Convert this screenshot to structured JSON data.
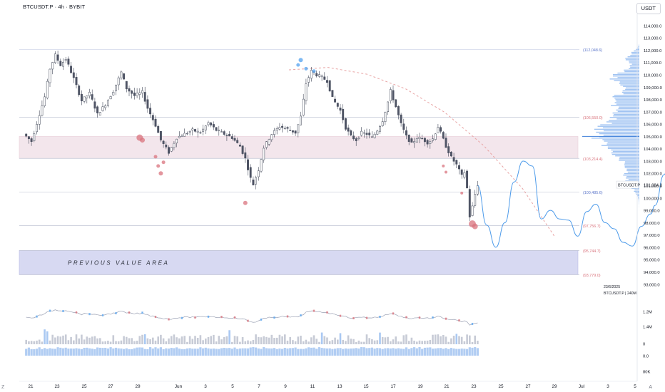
{
  "header": {
    "symbol": "BTCUSDT.P",
    "interval": "4h",
    "exchange": "BYBIT"
  },
  "currency_badge": "USDT",
  "corner_labels": {
    "bottom_left": "Z",
    "bottom_right": "A"
  },
  "colors": {
    "up": "#ffffff",
    "down": "#505566",
    "wick": "#444a5a",
    "profile": "#8fb8f0",
    "profile_poc": "#3f7fd9",
    "value_area": "#d7d9f2",
    "supply_zone": "#f3e6ec",
    "level_line": "#c3c7d6",
    "top_line": "#c9cfe6",
    "dashed_curve": "#e8a3a3",
    "projection": "#4d9bea",
    "bubble_red": "#d9737d",
    "bubble_blue": "#5ea8f0",
    "vol_bar": "#c7cbd6",
    "vol_bar_hl": "#a9c8f2",
    "osc_fill": "#a9c8f2"
  },
  "chart_data": {
    "type": "candlestick",
    "title": "BTCUSDT.P · 4h · BYBIT",
    "x_axis": {
      "labels": [
        "21",
        "23",
        "25",
        "27",
        "29",
        "Jun",
        "3",
        "5",
        "7",
        "9",
        "11",
        "13",
        "15",
        "17",
        "19",
        "21",
        "23",
        "25",
        "27",
        "29",
        "Jul",
        "3",
        "5"
      ]
    },
    "y_axis": {
      "ylim": [
        92700,
        114800
      ],
      "tick_labels": [
        "114,000.0",
        "113,000.0",
        "112,000.0",
        "111,000.0",
        "110,000.0",
        "109,000.0",
        "108,000.0",
        "107,000.0",
        "106,000.0",
        "105,000.0",
        "104,000.0",
        "103,000.0",
        "102,000.0",
        "101,000.0",
        "100,000.0",
        "99,000.0",
        "98,000.0",
        "97,000.0",
        "96,000.0",
        "95,000.0",
        "94,000.0",
        "93,000.0"
      ]
    },
    "levels": [
      {
        "value": 112048.6,
        "label": "(112,048.6)",
        "color": "#5b75c9"
      },
      {
        "value": 106550.0,
        "label": "(106,550.0)",
        "color": "#d9737d"
      },
      {
        "value": 103214.4,
        "label": "(103,214.4)",
        "color": "#d9737d"
      },
      {
        "value": 100485.6,
        "label": "(100,485.6)",
        "color": "#5b75c9"
      },
      {
        "value": 97756.7,
        "label": "(97,756.7)",
        "color": "#d9737d"
      },
      {
        "value": 95744.7,
        "label": "(95,744.7)",
        "color": "#d9737d"
      },
      {
        "value": 93779.0,
        "label": "(93,779.0)",
        "color": "#d9737d"
      }
    ],
    "zones": [
      {
        "name": "supply",
        "from": 103214.4,
        "to": 105000
      },
      {
        "name": "previous_value_area",
        "label": "PREVIOUS VALUE AREA",
        "from": 93779.0,
        "to": 95744.7
      }
    ],
    "last_price": {
      "symbol": "BTCUSDT.P",
      "value": "101,084.3"
    },
    "projection_note": {
      "date": "23/6/2025",
      "text": "BTCUSDT.P | 240M"
    },
    "lower_axis": {
      "labels": [
        "1.2M",
        "1.4M",
        "0",
        "0.0",
        "80K"
      ]
    },
    "series": {
      "anchors": [
        [
          0,
          105200
        ],
        [
          3,
          104600
        ],
        [
          6,
          106800
        ],
        [
          8,
          108200
        ],
        [
          10,
          110500
        ],
        [
          12,
          111600
        ],
        [
          14,
          110800
        ],
        [
          16,
          111300
        ],
        [
          19,
          109700
        ],
        [
          22,
          107900
        ],
        [
          25,
          108500
        ],
        [
          28,
          106800
        ],
        [
          31,
          107600
        ],
        [
          34,
          108700
        ],
        [
          37,
          110200
        ],
        [
          39,
          108900
        ],
        [
          42,
          108300
        ],
        [
          45,
          108600
        ],
        [
          47,
          107300
        ],
        [
          50,
          105900
        ],
        [
          52,
          104700
        ],
        [
          55,
          103700
        ],
        [
          58,
          104900
        ],
        [
          61,
          105200
        ],
        [
          64,
          105500
        ],
        [
          67,
          105300
        ],
        [
          70,
          106100
        ],
        [
          73,
          105500
        ],
        [
          76,
          105200
        ],
        [
          79,
          104900
        ],
        [
          82,
          104200
        ],
        [
          84,
          103200
        ],
        [
          86,
          101600
        ],
        [
          87,
          101100
        ],
        [
          89,
          102300
        ],
        [
          91,
          104100
        ],
        [
          94,
          105200
        ],
        [
          97,
          105800
        ],
        [
          100,
          105600
        ],
        [
          103,
          105300
        ],
        [
          105,
          106600
        ],
        [
          107,
          109300
        ],
        [
          109,
          110300
        ],
        [
          111,
          110000
        ],
        [
          113,
          109800
        ],
        [
          115,
          109500
        ],
        [
          117,
          108100
        ],
        [
          120,
          107100
        ],
        [
          122,
          105700
        ],
        [
          124,
          105000
        ],
        [
          126,
          104700
        ],
        [
          128,
          105300
        ],
        [
          130,
          105200
        ],
        [
          132,
          104900
        ],
        [
          134,
          105500
        ],
        [
          136,
          106300
        ],
        [
          138,
          107800
        ],
        [
          139,
          108700
        ],
        [
          141,
          107400
        ],
        [
          143,
          106000
        ],
        [
          145,
          105000
        ],
        [
          147,
          104400
        ],
        [
          149,
          104900
        ],
        [
          151,
          104800
        ],
        [
          153,
          104500
        ],
        [
          155,
          104800
        ],
        [
          157,
          105800
        ],
        [
          158,
          105300
        ],
        [
          160,
          104200
        ],
        [
          162,
          103300
        ],
        [
          164,
          102700
        ],
        [
          166,
          101800
        ],
        [
          167,
          102100
        ],
        [
          168,
          100800
        ],
        [
          169,
          98500
        ],
        [
          170,
          99300
        ],
        [
          171,
          100300
        ],
        [
          172,
          101084
        ]
      ],
      "volume_highlights": [
        8,
        9,
        46,
        78,
        113,
        120,
        135,
        164
      ]
    },
    "projection_path": [
      [
        0,
        101000
      ],
      [
        2,
        97800
      ],
      [
        4,
        96000
      ],
      [
        6,
        98000
      ],
      [
        8,
        101300
      ],
      [
        10,
        103000
      ],
      [
        12,
        102600
      ],
      [
        14,
        98300
      ],
      [
        16,
        99000
      ],
      [
        18,
        98300
      ],
      [
        20,
        98200
      ],
      [
        22,
        96900
      ],
      [
        24,
        98900
      ],
      [
        26,
        99500
      ],
      [
        28,
        98000
      ],
      [
        30,
        97500
      ],
      [
        32,
        96400
      ],
      [
        34,
        96100
      ],
      [
        36,
        97700
      ],
      [
        38,
        98700
      ],
      [
        39,
        99400
      ],
      [
        41,
        101900
      ],
      [
        42,
        102700
      ],
      [
        44,
        98100
      ],
      [
        45,
        97700
      ],
      [
        47,
        96100
      ],
      [
        49,
        93200
      ]
    ],
    "dashed_curve": [
      [
        0,
        110400
      ],
      [
        30,
        110600
      ],
      [
        60,
        110050
      ],
      [
        90,
        108850
      ],
      [
        120,
        106950
      ],
      [
        150,
        104250
      ],
      [
        180,
        100750
      ],
      [
        205,
        96800
      ]
    ],
    "bubbles_red": [
      [
        44,
        104900,
        4.5
      ],
      [
        45,
        104700,
        3.5
      ],
      [
        50,
        103350,
        2.5
      ],
      [
        53,
        102900,
        2.5
      ],
      [
        51,
        102600,
        2.5
      ],
      [
        52,
        102000,
        3
      ],
      [
        84,
        99600,
        3
      ],
      [
        159,
        102600,
        2
      ],
      [
        160,
        102100,
        2
      ],
      [
        166,
        100400,
        2
      ],
      [
        170,
        97900,
        5
      ],
      [
        171,
        97700,
        4
      ]
    ],
    "bubbles_blue": [
      [
        105,
        111200,
        3
      ],
      [
        104,
        110800,
        2.5
      ],
      [
        107,
        110500,
        2.5
      ],
      [
        110,
        110300,
        2.5
      ]
    ]
  }
}
